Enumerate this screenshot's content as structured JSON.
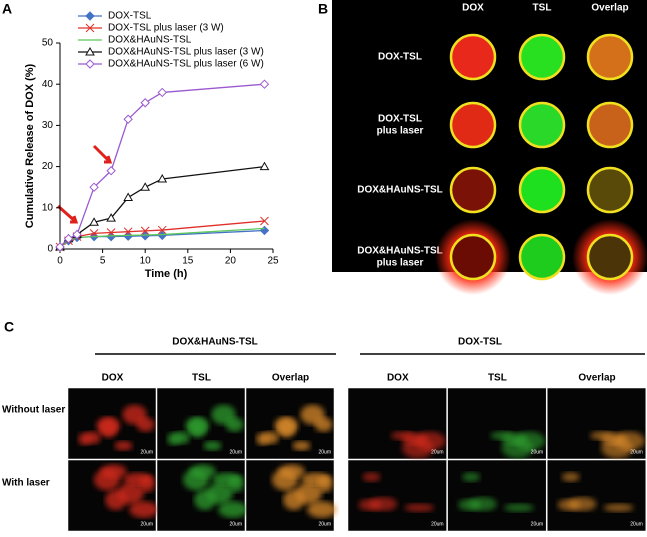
{
  "chart_data": {
    "type": "line",
    "xlabel": "Time (h)",
    "ylabel": "Cumulative Release of DOX (%)",
    "x": [
      0,
      1,
      2,
      4,
      6,
      8,
      10,
      12,
      24
    ],
    "series": [
      {
        "name": "DOX-TSL",
        "color": "#4472c4",
        "marker": "diamond",
        "values": [
          0.5,
          2,
          2.8,
          3,
          3,
          3.1,
          3.2,
          3.3,
          4.5
        ]
      },
      {
        "name": "DOX-TSL plus laser (3 W)",
        "color": "#e0302a",
        "marker": "x",
        "values": [
          0.5,
          2,
          3,
          3.8,
          4,
          4.2,
          4.4,
          4.6,
          6.8
        ]
      },
      {
        "name": "DOX&HAuNS-TSL",
        "color": "#5cc85c",
        "marker": "none",
        "values": [
          0.5,
          2,
          2.8,
          3,
          3.2,
          3.3,
          3.4,
          3.5,
          5
        ]
      },
      {
        "name": "DOX&HAuNS-TSL plus laser (3 W)",
        "color": "#111111",
        "marker": "triangle",
        "values": [
          0.5,
          2.5,
          3.5,
          6.5,
          7.5,
          12.5,
          15,
          17,
          20
        ]
      },
      {
        "name": "DOX&HAuNS-TSL plus laser (6 W)",
        "color": "#9b59d0",
        "marker": "diamond",
        "values": [
          0.5,
          2.5,
          3.5,
          15,
          19,
          31.5,
          35.5,
          38,
          40
        ]
      }
    ],
    "xlim": [
      0,
      25
    ],
    "xticks": [
      0,
      5,
      10,
      15,
      20,
      25
    ],
    "ylim": [
      0,
      50
    ],
    "yticks": [
      0,
      10,
      20,
      30,
      40,
      50
    ],
    "legend": "upper left"
  },
  "panel_labels": [
    "A",
    "B",
    "C"
  ],
  "panel_b": {
    "columns": [
      "DOX",
      "TSL",
      "Overlap"
    ],
    "rows": [
      [
        "DOX-TSL"
      ],
      [
        "DOX-TSL",
        "plus laser"
      ],
      [
        "DOX&HAuNS-TSL"
      ],
      [
        "DOX&HAuNS-TSL",
        "plus laser"
      ]
    ]
  },
  "panel_c": {
    "groups": [
      "DOX&HAuNS-TSL",
      "DOX-TSL"
    ],
    "columns": [
      "DOX",
      "TSL",
      "Overlap"
    ],
    "rows": [
      "Without laser",
      "With laser"
    ],
    "scale_label": "20um"
  }
}
